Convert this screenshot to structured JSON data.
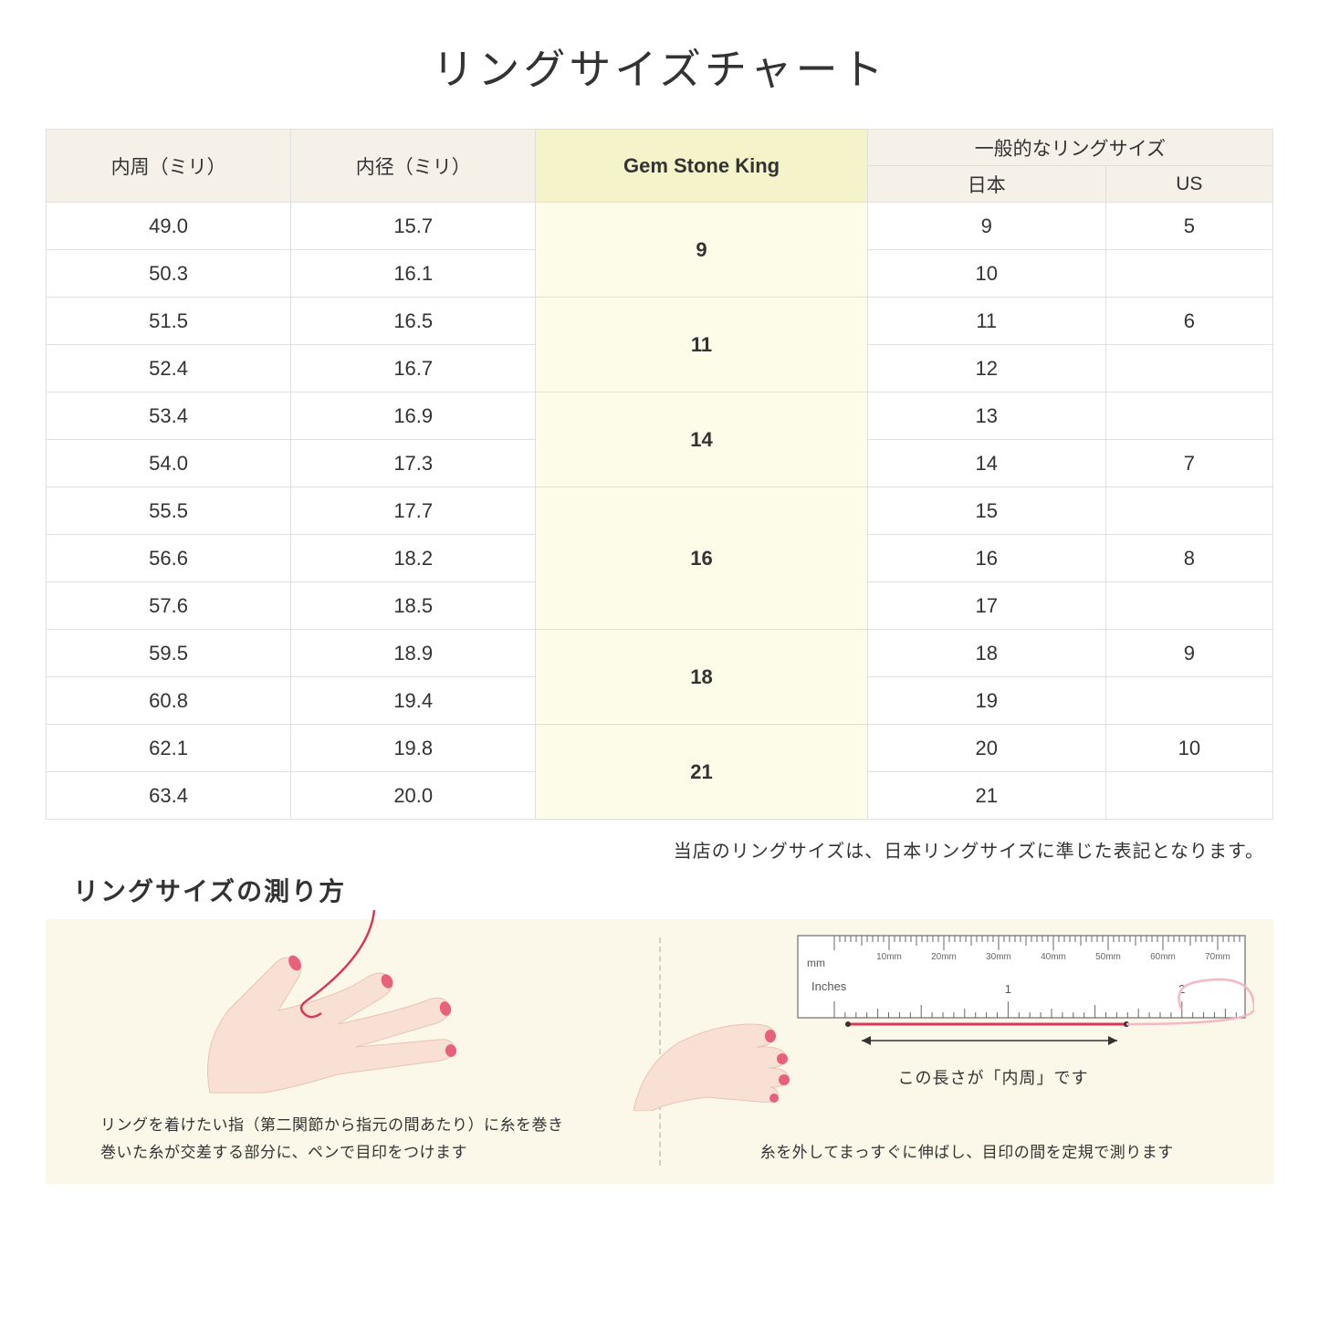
{
  "title": "リングサイズチャート",
  "table": {
    "headers": {
      "col1": "内周（ミリ）",
      "col2": "内径（ミリ）",
      "col3": "Gem Stone King",
      "col4_group": "一般的なリングサイズ",
      "col4a": "日本",
      "col4b": "US"
    },
    "rows": [
      {
        "c1": "49.0",
        "c2": "15.7",
        "jp": "9",
        "us": "5"
      },
      {
        "c1": "50.3",
        "c2": "16.1",
        "jp": "10",
        "us": ""
      },
      {
        "c1": "51.5",
        "c2": "16.5",
        "jp": "11",
        "us": "6"
      },
      {
        "c1": "52.4",
        "c2": "16.7",
        "jp": "12",
        "us": ""
      },
      {
        "c1": "53.4",
        "c2": "16.9",
        "jp": "13",
        "us": ""
      },
      {
        "c1": "54.0",
        "c2": "17.3",
        "jp": "14",
        "us": "7"
      },
      {
        "c1": "55.5",
        "c2": "17.7",
        "jp": "15",
        "us": ""
      },
      {
        "c1": "56.6",
        "c2": "18.2",
        "jp": "16",
        "us": "8"
      },
      {
        "c1": "57.6",
        "c2": "18.5",
        "jp": "17",
        "us": ""
      },
      {
        "c1": "59.5",
        "c2": "18.9",
        "jp": "18",
        "us": "9"
      },
      {
        "c1": "60.8",
        "c2": "19.4",
        "jp": "19",
        "us": ""
      },
      {
        "c1": "62.1",
        "c2": "19.8",
        "jp": "20",
        "us": "10"
      },
      {
        "c1": "63.4",
        "c2": "20.0",
        "jp": "21",
        "us": ""
      }
    ],
    "gsk_groups": [
      {
        "span": 2,
        "label": "9"
      },
      {
        "span": 2,
        "label": "11"
      },
      {
        "span": 2,
        "label": "14"
      },
      {
        "span": 3,
        "label": "16"
      },
      {
        "span": 2,
        "label": "18"
      },
      {
        "span": 2,
        "label": "21"
      }
    ],
    "colors": {
      "header_bg": "#f5f1e8",
      "gsk_header_bg": "#f4f3c9",
      "gsk_cell_bg": "#fdfce8",
      "border": "#e0e0e0"
    }
  },
  "note": "当店のリングサイズは、日本リングサイズに準じた表記となります。",
  "howto": {
    "title": "リングサイズの測り方",
    "left_caption_line1": "リングを着けたい指（第二関節から指元の間あたり）に糸を巻き",
    "left_caption_line2": "巻いた糸が交差する部分に、ペンで目印をつけます",
    "ruler_label": "この長さが「内周」です",
    "right_caption": "糸を外してまっすぐに伸ばし、目印の間を定規で測ります",
    "ruler_marks": [
      "10mm",
      "20mm",
      "30mm",
      "40mm",
      "50mm",
      "60mm",
      "70mm"
    ],
    "ruler_unit_mm": "mm",
    "ruler_unit_in": "Inches",
    "ruler_in_marks": [
      "1",
      "2"
    ],
    "bg_color": "#fbf8e9",
    "hand_color": "#f9e0d5",
    "nail_color": "#e8617a",
    "thread_color": "#d73859"
  }
}
